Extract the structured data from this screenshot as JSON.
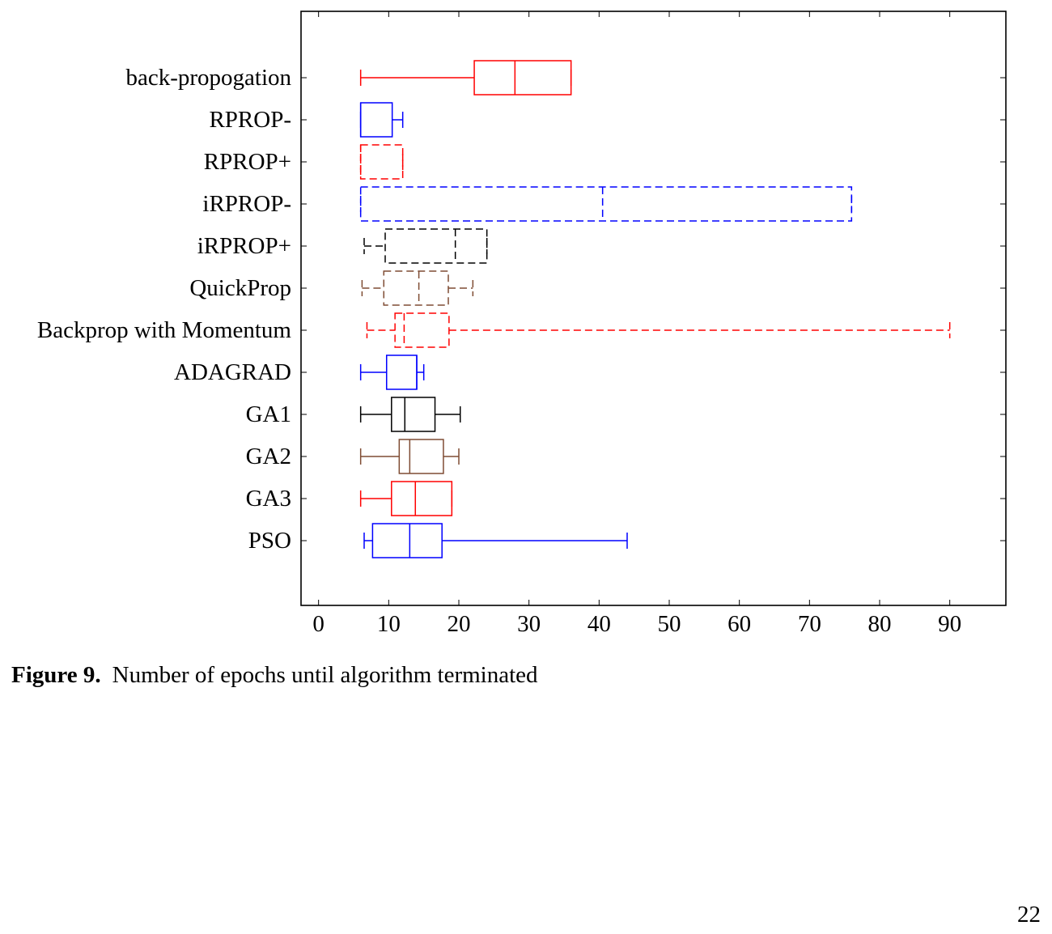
{
  "chart_data": {
    "type": "boxplot",
    "orientation": "horizontal",
    "title": "",
    "xlabel": "",
    "ylabel": "",
    "xlim": [
      -2.5,
      98
    ],
    "xticks": [
      0,
      10,
      20,
      30,
      40,
      50,
      60,
      70,
      80,
      90
    ],
    "grid": false,
    "legend": "none",
    "categories": [
      "back-propogation",
      "RPROP-",
      "RPROP+",
      "iRPROP-",
      "iRPROP+",
      "QuickProp",
      "Backprop with Momentum",
      "ADAGRAD",
      "GA1",
      "GA2",
      "GA3",
      "PSO"
    ],
    "boxes": [
      {
        "label": "back-propogation",
        "whisker_low": 6,
        "q1": 22.2,
        "median": 28,
        "q3": 36,
        "whisker_high": 36,
        "color": "#ff0000",
        "dashed": false
      },
      {
        "label": "RPROP-",
        "whisker_low": 6,
        "q1": 6,
        "median": 6,
        "q3": 10.5,
        "whisker_high": 12,
        "color": "#0000ff",
        "dashed": false
      },
      {
        "label": "RPROP+",
        "whisker_low": 6,
        "q1": 6,
        "median": 6,
        "q3": 12,
        "whisker_high": 12,
        "color": "#ff0000",
        "dashed": true
      },
      {
        "label": "iRPROP-",
        "whisker_low": 6,
        "q1": 6,
        "median": 40.5,
        "q3": 76,
        "whisker_high": 76,
        "color": "#0000ff",
        "dashed": true
      },
      {
        "label": "iRPROP+",
        "whisker_low": 6.5,
        "q1": 9.5,
        "median": 19.5,
        "q3": 24,
        "whisker_high": 24,
        "color": "#000000",
        "dashed": true
      },
      {
        "label": "QuickProp",
        "whisker_low": 6.2,
        "q1": 9.3,
        "median": 14.3,
        "q3": 18.5,
        "whisker_high": 22,
        "color": "#7f4c33",
        "dashed": true
      },
      {
        "label": "Backprop with Momentum",
        "whisker_low": 6.9,
        "q1": 10.9,
        "median": 12.2,
        "q3": 18.6,
        "whisker_high": 90,
        "color": "#ff0000",
        "dashed": true
      },
      {
        "label": "ADAGRAD",
        "whisker_low": 6,
        "q1": 9.7,
        "median": 14,
        "q3": 14,
        "whisker_high": 15,
        "color": "#0000ff",
        "dashed": false
      },
      {
        "label": "GA1",
        "whisker_low": 6,
        "q1": 10.4,
        "median": 12.3,
        "q3": 16.6,
        "whisker_high": 20.2,
        "color": "#000000",
        "dashed": false
      },
      {
        "label": "GA2",
        "whisker_low": 6,
        "q1": 11.5,
        "median": 13,
        "q3": 17.8,
        "whisker_high": 20,
        "color": "#7f4c33",
        "dashed": false
      },
      {
        "label": "GA3",
        "whisker_low": 6,
        "q1": 10.4,
        "median": 13.8,
        "q3": 19,
        "whisker_high": 19,
        "color": "#ff0000",
        "dashed": false
      },
      {
        "label": "PSO",
        "whisker_low": 6.5,
        "q1": 7.7,
        "median": 13,
        "q3": 17.6,
        "whisker_high": 44,
        "color": "#0000ff",
        "dashed": false
      }
    ]
  },
  "caption": {
    "label": "Figure 9.",
    "text": "Number of epochs until algorithm terminated"
  },
  "page_number": "22"
}
